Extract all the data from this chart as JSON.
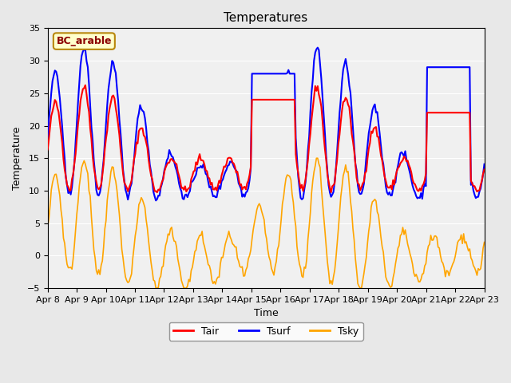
{
  "title": "Temperatures",
  "xlabel": "Time",
  "ylabel": "Temperature",
  "ylim": [
    -5,
    35
  ],
  "xlim_days": [
    0,
    15
  ],
  "x_tick_labels": [
    "Apr 8",
    "Apr 9",
    "Apr 10",
    "Apr 11",
    "Apr 12",
    "Apr 13",
    "Apr 14",
    "Apr 15",
    "Apr 16",
    "Apr 17",
    "Apr 18",
    "Apr 19",
    "Apr 20",
    "Apr 21",
    "Apr 22",
    "Apr 23"
  ],
  "legend_label": "BC_arable",
  "series": {
    "Tair": {
      "color": "red",
      "lw": 1.5
    },
    "Tsurf": {
      "color": "blue",
      "lw": 1.5
    },
    "Tsky": {
      "color": "orange",
      "lw": 1.2
    }
  },
  "bg_color": "#e8e8e8",
  "plot_bg": "#f0f0f0",
  "figsize": [
    6.4,
    4.8
  ],
  "dpi": 100
}
